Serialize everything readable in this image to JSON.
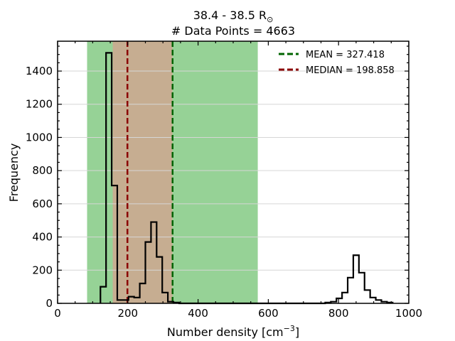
{
  "chart_data": {
    "type": "histogram",
    "title_line1": "38.4 - 38.5 R",
    "title_symbol": "⊙",
    "title_line2": "# Data Points = 4663",
    "xlabel": "Number density [cm",
    "xlabel_exp": "−3",
    "xlabel_end": "]",
    "ylabel": "Frequency",
    "xlim": [
      0,
      1000
    ],
    "ylim": [
      0,
      1580
    ],
    "xticks": [
      0,
      200,
      400,
      600,
      800,
      1000
    ],
    "yticks": [
      0,
      200,
      400,
      600,
      800,
      1000,
      1200,
      1400
    ],
    "grid": "horizontal",
    "legend_position": "top-right",
    "bin_width": 16,
    "bins_start": 122,
    "counts": [
      100,
      1510,
      710,
      20,
      20,
      40,
      35,
      120,
      370,
      490,
      280,
      65,
      10,
      5,
      0,
      0,
      0,
      0,
      0,
      0,
      0,
      0,
      0,
      0,
      0,
      0,
      0,
      0,
      0,
      0,
      0,
      0,
      0,
      0,
      0,
      0,
      0,
      0,
      0,
      0,
      5,
      10,
      30,
      65,
      155,
      290,
      185,
      80,
      35,
      20,
      10,
      5
    ],
    "shaded_regions": [
      {
        "x0": 84,
        "x1": 570,
        "color": "#6abf69",
        "opacity": 0.7
      },
      {
        "x0": 157,
        "x1": 327,
        "color": "#e0998f",
        "opacity": 0.65
      }
    ],
    "lines": [
      {
        "label": "MEAN = 327.418",
        "x": 327.418,
        "color": "#006400"
      },
      {
        "label": "MEDIAN = 198.858",
        "x": 198.858,
        "color": "#8b0000"
      }
    ]
  }
}
